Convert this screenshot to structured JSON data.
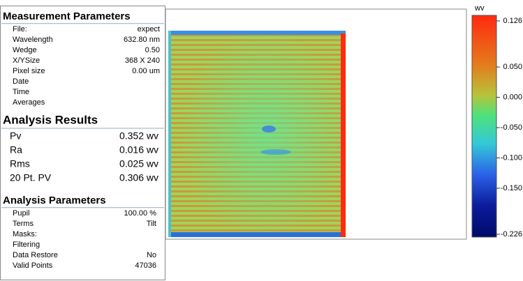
{
  "measurement_parameters": {
    "title": "Measurement Parameters",
    "rows": [
      {
        "label": "File:",
        "value": "expect"
      },
      {
        "label": "Wavelength",
        "value": "632.80 nm"
      },
      {
        "label": "Wedge",
        "value": "0.50"
      },
      {
        "label": "X/YSize",
        "value": "368 X 240"
      },
      {
        "label": "Pixel size",
        "value": "0.00 um"
      },
      {
        "label": "Date"
      },
      {
        "label": "Time"
      },
      {
        "label": "Averages"
      }
    ]
  },
  "analysis_results": {
    "title": "Analysis Results",
    "rows": [
      {
        "label": "Pv",
        "value": "0.352 wv"
      },
      {
        "label": "Ra",
        "value": "0.016 wv"
      },
      {
        "label": "Rms",
        "value": "0.025 wv"
      },
      {
        "label": "20 Pt. PV",
        "value": "0.306 wv"
      }
    ]
  },
  "analysis_parameters": {
    "title": "Analysis Parameters",
    "rows": [
      {
        "label": "Pupil",
        "value": "100.00 %"
      },
      {
        "label": "Terms",
        "value": "Tilt"
      },
      {
        "label": "Masks:"
      },
      {
        "label": "Filtering"
      },
      {
        "label": "Data Restore",
        "value": "No"
      },
      {
        "label": "Valid Points",
        "value": "47036"
      }
    ]
  },
  "colorbar": {
    "unit": "wv",
    "ticks": [
      {
        "value": 0.126,
        "label": "0.126"
      },
      {
        "value": 0.05,
        "label": "0.050"
      },
      {
        "value": 0,
        "label": "0.000"
      },
      {
        "value": -0.05,
        "label": "-0.050"
      },
      {
        "value": -0.1,
        "label": "-0.100"
      },
      {
        "value": -0.15,
        "label": "-0.150"
      },
      {
        "value": -0.226,
        "label": "-0.226"
      }
    ]
  }
}
